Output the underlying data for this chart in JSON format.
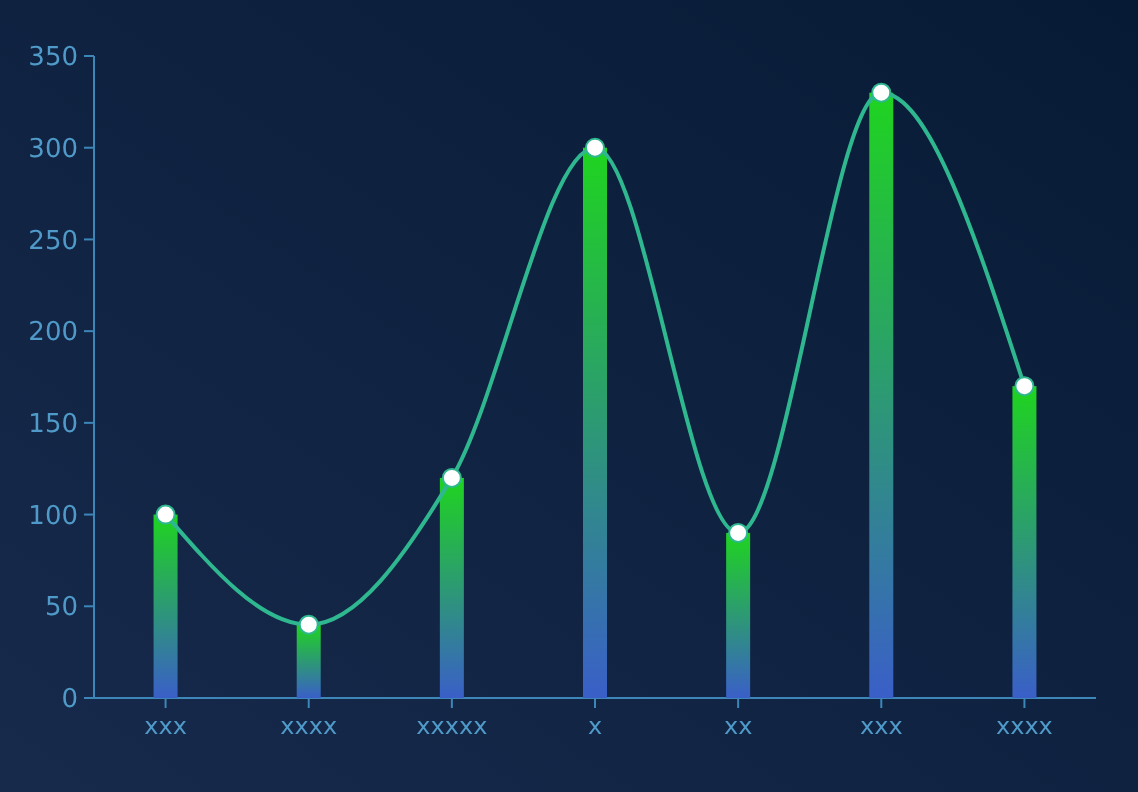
{
  "chart_data": {
    "type": "bar",
    "categories": [
      "xxx",
      "xxxx",
      "xxxxx",
      "x",
      "xx",
      "xxx",
      "xxxx"
    ],
    "series": [
      {
        "color": "#1fd41f",
        "values": [
          100,
          40,
          120,
          300,
          90,
          330,
          170
        ]
      },
      {
        "type": "line",
        "color": "#2fb890",
        "values": [
          100,
          40,
          120,
          300,
          90,
          330,
          170
        ]
      }
    ],
    "ylim": [
      0,
      350
    ],
    "yticks": [
      0,
      50,
      100,
      150,
      200,
      250,
      300,
      350
    ],
    "grid": false,
    "marker": "circle",
    "line_style": "solid"
  }
}
